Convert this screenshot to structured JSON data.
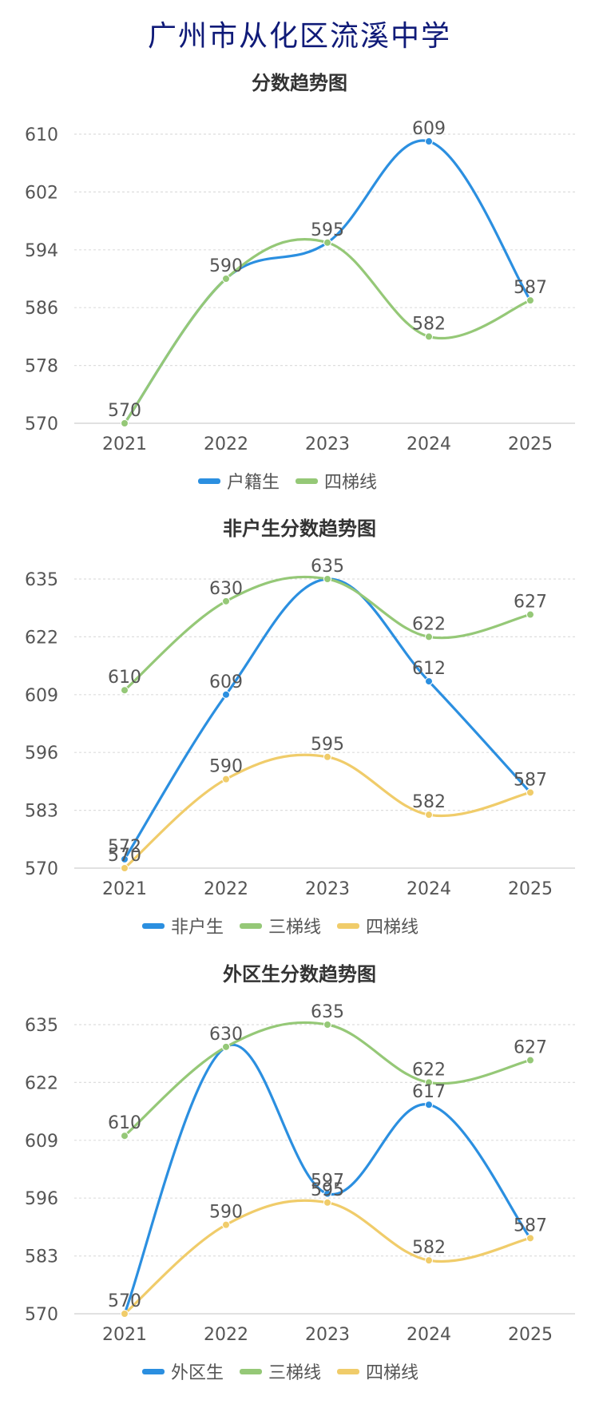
{
  "page_title": "广州市从化区流溪中学",
  "colors": {
    "blue": "#2b8fe0",
    "green": "#95c877",
    "yellow": "#f0cc6a",
    "title": "#0f1a78"
  },
  "chart_data": [
    {
      "type": "line",
      "title": "分数趋势图",
      "categories": [
        "2021",
        "2022",
        "2023",
        "2024",
        "2025"
      ],
      "ylim": [
        570,
        610
      ],
      "yticks": [
        570,
        578,
        586,
        594,
        602,
        610
      ],
      "grid": true,
      "legend_position": "bottom",
      "series": [
        {
          "name": "户籍生",
          "color": "#2b8fe0",
          "values": [
            570,
            590,
            595,
            609,
            587
          ],
          "labels": [
            "",
            "",
            "",
            "609",
            ""
          ]
        },
        {
          "name": "四梯线",
          "color": "#95c877",
          "values": [
            570,
            590,
            595,
            582,
            587
          ],
          "labels": [
            "570",
            "590",
            "595",
            "582",
            "587"
          ]
        }
      ]
    },
    {
      "type": "line",
      "title": "非户生分数趋势图",
      "categories": [
        "2021",
        "2022",
        "2023",
        "2024",
        "2025"
      ],
      "ylim": [
        570,
        635
      ],
      "yticks": [
        570,
        583,
        596,
        609,
        622,
        635
      ],
      "grid": true,
      "legend_position": "bottom",
      "series": [
        {
          "name": "非户生",
          "color": "#2b8fe0",
          "values": [
            572,
            609,
            635,
            612,
            587
          ],
          "labels": [
            "572",
            "609",
            "",
            "612",
            ""
          ]
        },
        {
          "name": "三梯线",
          "color": "#95c877",
          "values": [
            610,
            630,
            635,
            622,
            627
          ],
          "labels": [
            "610",
            "630",
            "635",
            "622",
            "627"
          ]
        },
        {
          "name": "四梯线",
          "color": "#f0cc6a",
          "values": [
            570,
            590,
            595,
            582,
            587
          ],
          "labels": [
            "570",
            "590",
            "595",
            "582",
            "587"
          ]
        }
      ]
    },
    {
      "type": "line",
      "title": "外区生分数趋势图",
      "categories": [
        "2021",
        "2022",
        "2023",
        "2024",
        "2025"
      ],
      "ylim": [
        570,
        635
      ],
      "yticks": [
        570,
        583,
        596,
        609,
        622,
        635
      ],
      "grid": true,
      "legend_position": "bottom",
      "series": [
        {
          "name": "外区生",
          "color": "#2b8fe0",
          "values": [
            570,
            630,
            597,
            617,
            587
          ],
          "labels": [
            "",
            "",
            "597",
            "617",
            ""
          ]
        },
        {
          "name": "三梯线",
          "color": "#95c877",
          "values": [
            610,
            630,
            635,
            622,
            627
          ],
          "labels": [
            "610",
            "630",
            "635",
            "622",
            "627"
          ]
        },
        {
          "name": "四梯线",
          "color": "#f0cc6a",
          "values": [
            570,
            590,
            595,
            582,
            587
          ],
          "labels": [
            "570",
            "590",
            "595",
            "582",
            "587"
          ]
        }
      ]
    }
  ]
}
